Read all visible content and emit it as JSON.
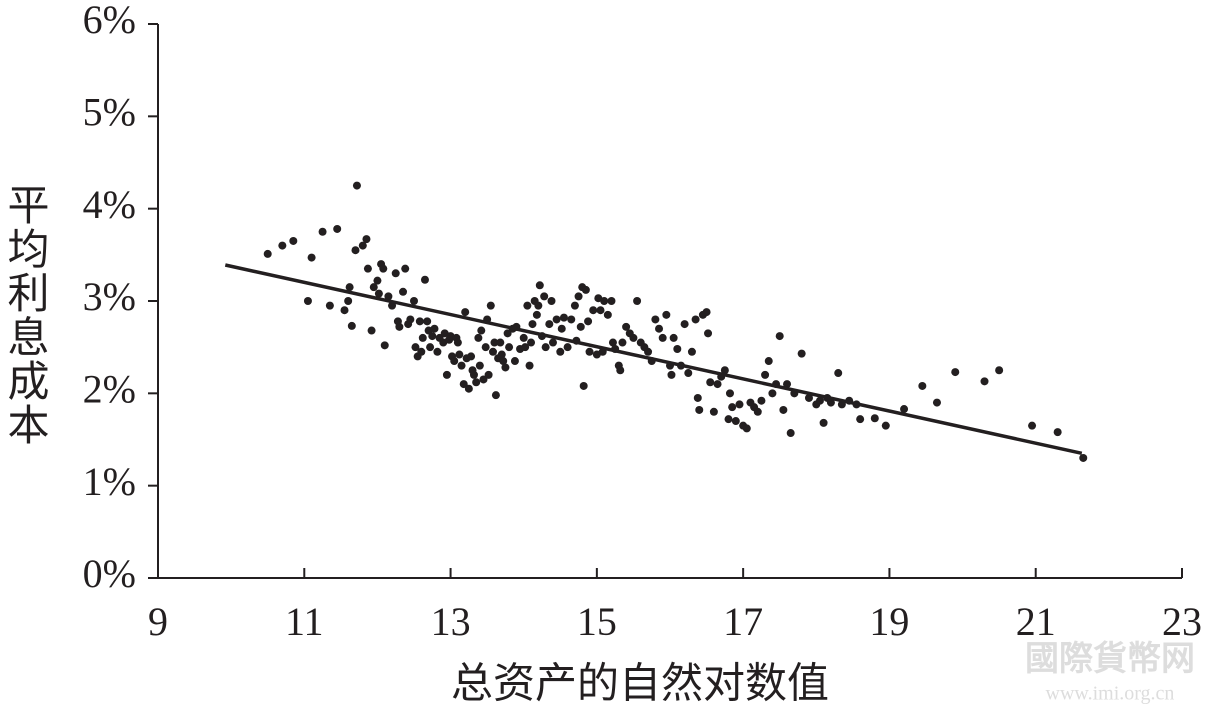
{
  "chart_data": {
    "type": "scatter",
    "xlabel": "总资产的自然对数值",
    "ylabel": "平均利息成本",
    "watermark": [
      "國際貨幣网",
      "www.imi.org.cn"
    ],
    "xlim": [
      9,
      23
    ],
    "xticks": [
      9,
      11,
      13,
      15,
      17,
      19,
      21,
      23
    ],
    "ylim": [
      0,
      6
    ],
    "yticks": [
      {
        "value": 0,
        "label": "0%"
      },
      {
        "value": 1,
        "label": "1%"
      },
      {
        "value": 2,
        "label": "2%"
      },
      {
        "value": 3,
        "label": "3%"
      },
      {
        "value": 4,
        "label": "4%"
      },
      {
        "value": 5,
        "label": "5%"
      },
      {
        "value": 6,
        "label": "6%"
      }
    ],
    "color": "#231f20",
    "trendline": {
      "x": [
        9.92,
        21.63
      ],
      "y": [
        3.39,
        1.35
      ]
    },
    "x": [
      10.5,
      10.7,
      10.85,
      11.05,
      11.1,
      11.25,
      11.35,
      11.45,
      11.55,
      11.6,
      11.62,
      11.65,
      11.7,
      11.72,
      11.8,
      11.85,
      11.87,
      11.92,
      11.95,
      12.0,
      12.02,
      12.05,
      12.08,
      12.1,
      12.15,
      12.2,
      12.25,
      12.28,
      12.3,
      12.35,
      12.38,
      12.42,
      12.45,
      12.5,
      12.52,
      12.55,
      12.58,
      12.6,
      12.62,
      12.65,
      12.68,
      12.7,
      12.72,
      12.75,
      12.78,
      12.82,
      12.85,
      12.9,
      12.92,
      12.95,
      12.98,
      13.0,
      13.02,
      13.05,
      13.08,
      13.1,
      13.12,
      13.15,
      13.18,
      13.2,
      13.22,
      13.25,
      13.28,
      13.3,
      13.32,
      13.35,
      13.38,
      13.4,
      13.42,
      13.45,
      13.48,
      13.5,
      13.52,
      13.55,
      13.58,
      13.6,
      13.62,
      13.65,
      13.68,
      13.7,
      13.72,
      13.75,
      13.78,
      13.8,
      13.85,
      13.88,
      13.9,
      13.95,
      14.0,
      14.02,
      14.05,
      14.08,
      14.1,
      14.12,
      14.15,
      14.18,
      14.2,
      14.22,
      14.25,
      14.28,
      14.3,
      14.35,
      14.38,
      14.4,
      14.45,
      14.5,
      14.52,
      14.55,
      14.6,
      14.65,
      14.7,
      14.72,
      14.75,
      14.78,
      14.8,
      14.82,
      14.85,
      14.88,
      14.9,
      14.95,
      15.0,
      15.02,
      15.05,
      15.08,
      15.1,
      15.15,
      15.2,
      15.22,
      15.25,
      15.3,
      15.32,
      15.35,
      15.4,
      15.45,
      15.5,
      15.55,
      15.6,
      15.65,
      15.7,
      15.75,
      15.8,
      15.85,
      15.9,
      15.95,
      16.0,
      16.02,
      16.05,
      16.1,
      16.15,
      16.2,
      16.25,
      16.3,
      16.35,
      16.38,
      16.4,
      16.45,
      16.5,
      16.52,
      16.55,
      16.6,
      16.65,
      16.7,
      16.75,
      16.8,
      16.82,
      16.85,
      16.9,
      16.95,
      17.0,
      17.05,
      17.1,
      17.15,
      17.2,
      17.25,
      17.3,
      17.35,
      17.4,
      17.45,
      17.5,
      17.55,
      17.6,
      17.65,
      17.7,
      17.8,
      17.9,
      18.0,
      18.05,
      18.1,
      18.15,
      18.2,
      18.3,
      18.35,
      18.45,
      18.55,
      18.6,
      18.8,
      18.95,
      19.2,
      19.45,
      19.65,
      19.9,
      20.3,
      20.5,
      20.95,
      21.3,
      21.65
    ],
    "y": [
      3.51,
      3.6,
      3.65,
      3.0,
      3.47,
      3.75,
      2.95,
      3.78,
      2.9,
      3.0,
      3.15,
      2.73,
      3.55,
      4.25,
      3.6,
      3.67,
      3.35,
      2.68,
      3.15,
      3.22,
      3.08,
      3.4,
      3.35,
      2.52,
      3.05,
      2.95,
      3.3,
      2.78,
      2.72,
      3.1,
      3.35,
      2.75,
      2.8,
      3.0,
      2.5,
      2.4,
      2.78,
      2.45,
      2.6,
      3.23,
      2.78,
      2.68,
      2.5,
      2.62,
      2.7,
      2.45,
      2.6,
      2.55,
      2.65,
      2.2,
      2.58,
      2.62,
      2.4,
      2.35,
      2.6,
      2.55,
      2.42,
      2.3,
      2.1,
      2.88,
      2.38,
      2.05,
      2.4,
      2.25,
      2.2,
      2.12,
      2.6,
      2.3,
      2.68,
      2.15,
      2.5,
      2.8,
      2.2,
      2.95,
      2.45,
      2.55,
      1.98,
      2.38,
      2.55,
      2.42,
      2.35,
      2.28,
      2.65,
      2.5,
      2.7,
      2.35,
      2.72,
      2.48,
      2.6,
      2.5,
      2.95,
      2.3,
      2.55,
      2.75,
      3.0,
      2.85,
      2.95,
      3.17,
      2.62,
      3.05,
      2.5,
      2.75,
      3.0,
      2.55,
      2.8,
      2.45,
      2.7,
      2.82,
      2.5,
      2.8,
      2.95,
      2.57,
      3.05,
      2.72,
      3.15,
      2.08,
      3.12,
      2.78,
      2.45,
      2.9,
      2.42,
      3.03,
      2.9,
      2.45,
      3.0,
      2.85,
      3.0,
      2.55,
      2.48,
      2.3,
      2.25,
      2.55,
      2.72,
      2.65,
      2.6,
      3.0,
      2.55,
      2.5,
      2.45,
      2.35,
      2.8,
      2.7,
      2.6,
      2.85,
      2.3,
      2.2,
      2.6,
      2.48,
      2.3,
      2.75,
      2.22,
      2.45,
      2.8,
      1.95,
      1.82,
      2.85,
      2.88,
      2.65,
      2.12,
      1.8,
      2.1,
      2.18,
      2.25,
      1.72,
      2.0,
      1.85,
      1.7,
      1.88,
      1.65,
      1.62,
      1.9,
      1.85,
      1.8,
      1.92,
      2.2,
      2.35,
      2.0,
      2.1,
      2.62,
      1.82,
      2.1,
      1.57,
      2.0,
      2.43,
      1.95,
      1.88,
      1.92,
      1.68,
      1.95,
      1.9,
      2.22,
      1.88,
      1.92,
      1.88,
      1.72,
      1.73,
      1.65,
      1.83,
      2.08,
      1.9,
      2.23,
      2.13,
      2.25,
      1.65,
      1.58,
      1.3
    ]
  }
}
